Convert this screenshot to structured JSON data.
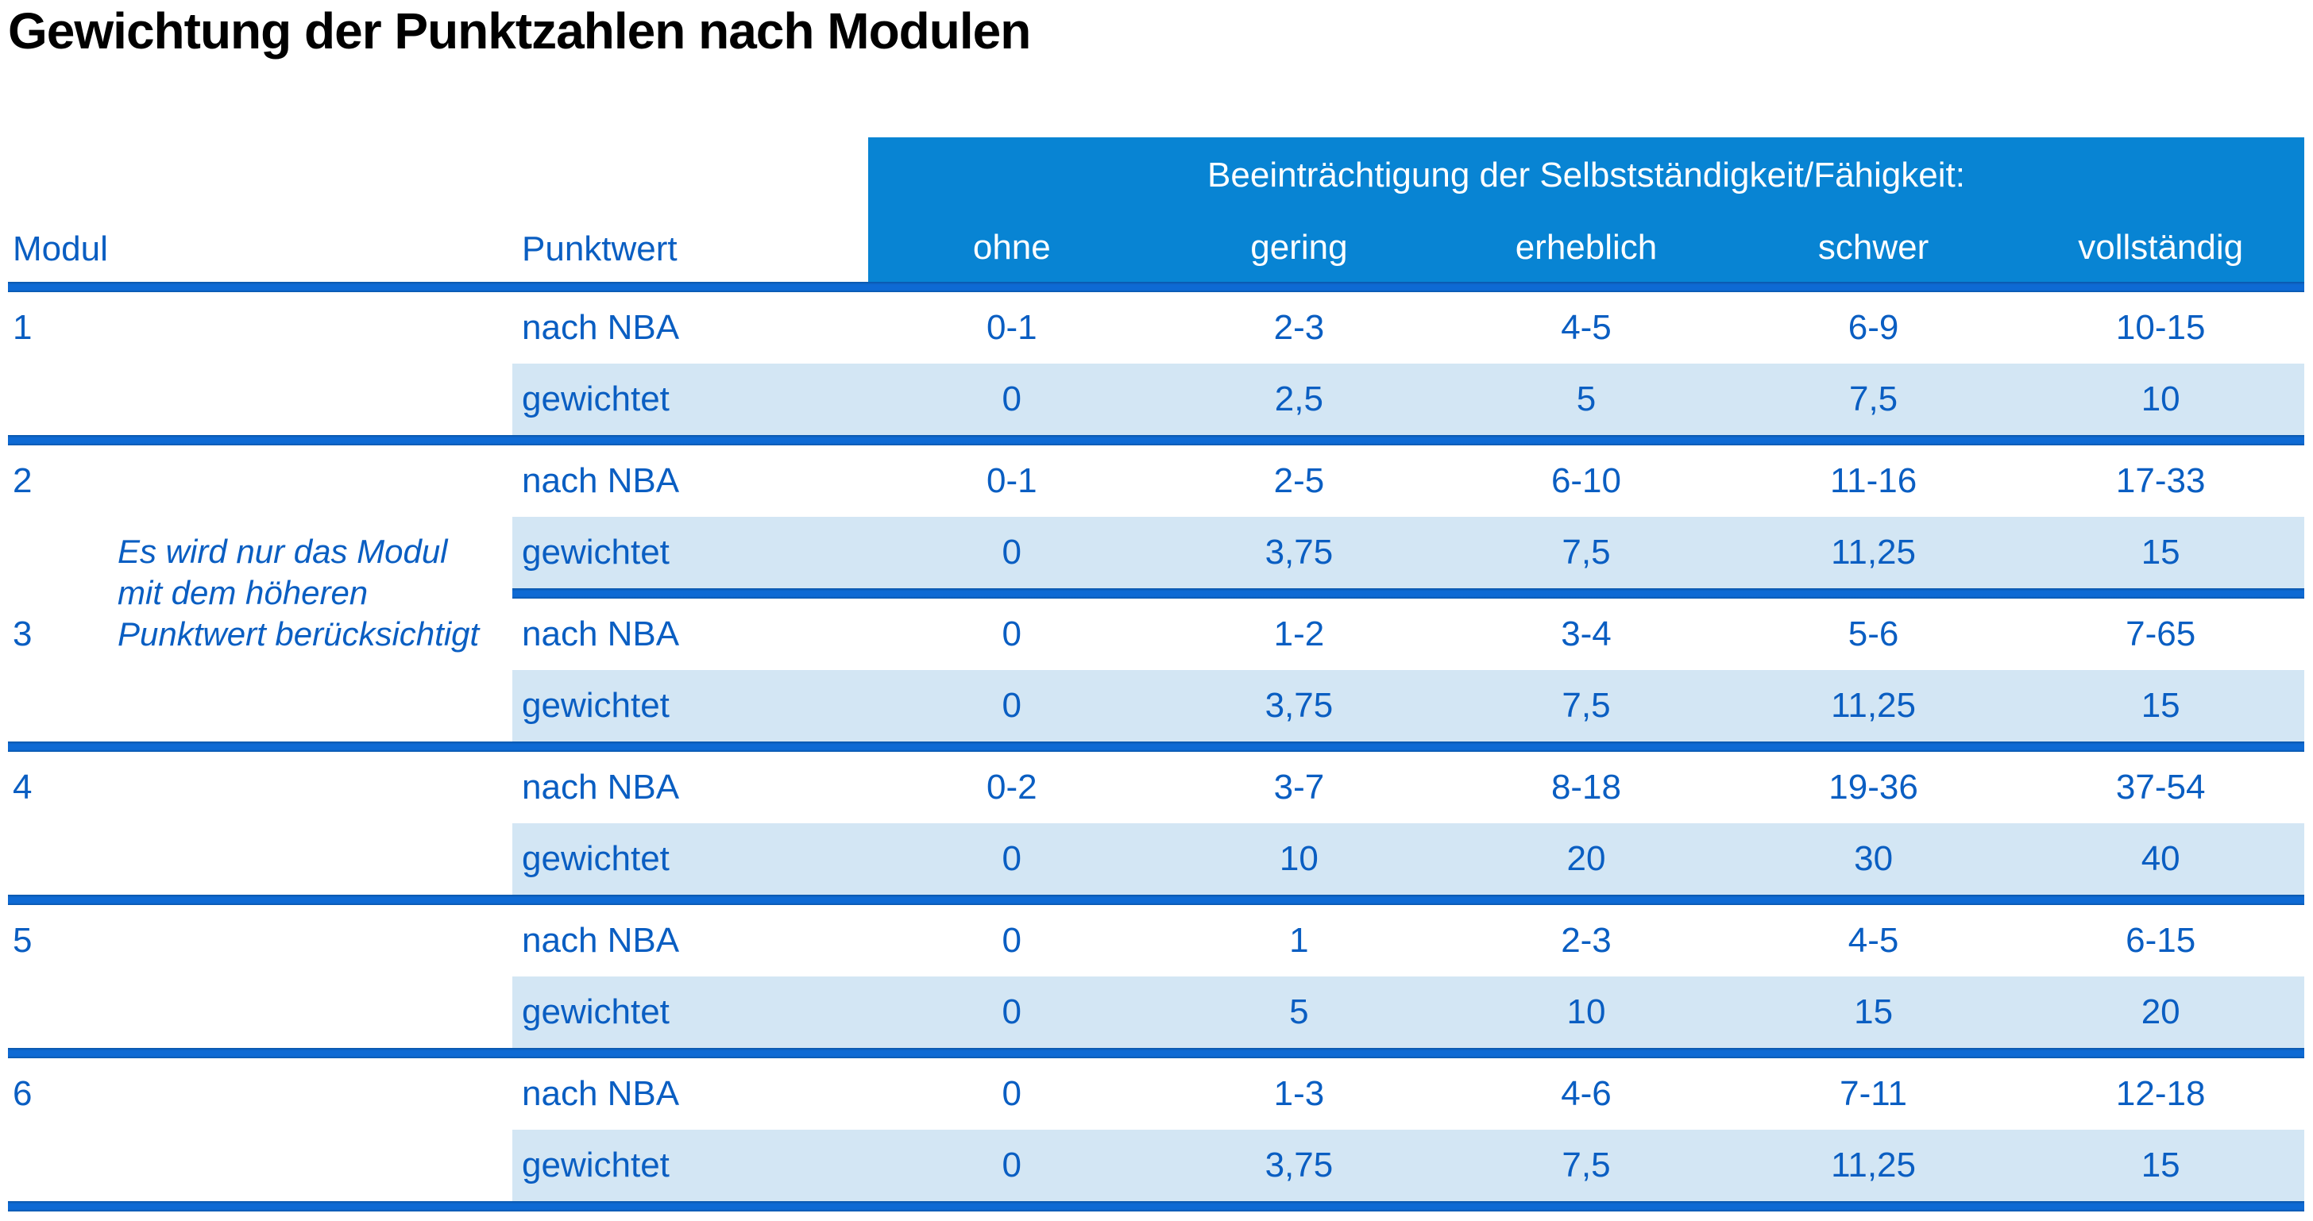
{
  "title": "Gewichtung der Punktzahlen nach Modulen",
  "colors": {
    "header_fill": "#0884D3",
    "text_blue": "#0A5EC2",
    "weighted_row_fill": "#D3E6F4",
    "separator_line": "#0E64CC",
    "title_color": "#000000"
  },
  "table": {
    "col_header_modul": "Modul",
    "col_header_punktwert": "Punktwert",
    "span_header": "Beeinträchtigung der Selbstständigkeit/Fähigkeit:",
    "severity_levels": [
      "ohne",
      "gering",
      "erheblich",
      "schwer",
      "vollständig"
    ],
    "row_label_nba": "nach NBA",
    "row_label_weighted": "gewichtet",
    "note_lines": [
      "Es wird nur das Modul",
      "mit dem höheren",
      "Punktwert berücksichtigt"
    ],
    "modules": [
      {
        "id": "1",
        "nba": [
          "0-1",
          "2-3",
          "4-5",
          "6-9",
          "10-15"
        ],
        "weighted": [
          "0",
          "2,5",
          "5",
          "7,5",
          "10"
        ]
      },
      {
        "id": "2",
        "nba": [
          "0-1",
          "2-5",
          "6-10",
          "11-16",
          "17-33"
        ],
        "weighted": [
          "0",
          "3,75",
          "7,5",
          "11,25",
          "15"
        ]
      },
      {
        "id": "3",
        "nba": [
          "0",
          "1-2",
          "3-4",
          "5-6",
          "7-65"
        ],
        "weighted": [
          "0",
          "3,75",
          "7,5",
          "11,25",
          "15"
        ]
      },
      {
        "id": "4",
        "nba": [
          "0-2",
          "3-7",
          "8-18",
          "19-36",
          "37-54"
        ],
        "weighted": [
          "0",
          "10",
          "20",
          "30",
          "40"
        ]
      },
      {
        "id": "5",
        "nba": [
          "0",
          "1",
          "2-3",
          "4-5",
          "6-15"
        ],
        "weighted": [
          "0",
          "5",
          "10",
          "15",
          "20"
        ]
      },
      {
        "id": "6",
        "nba": [
          "0",
          "1-3",
          "4-6",
          "7-11",
          "12-18"
        ],
        "weighted": [
          "0",
          "3,75",
          "7,5",
          "11,25",
          "15"
        ]
      }
    ]
  }
}
